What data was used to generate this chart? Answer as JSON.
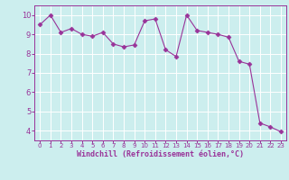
{
  "x": [
    0,
    1,
    2,
    3,
    4,
    5,
    6,
    7,
    8,
    9,
    10,
    11,
    12,
    13,
    14,
    15,
    16,
    17,
    18,
    19,
    20,
    21,
    22,
    23
  ],
  "y": [
    9.5,
    10.0,
    9.1,
    9.3,
    9.0,
    8.9,
    9.1,
    8.5,
    8.35,
    8.45,
    9.7,
    9.8,
    8.2,
    7.85,
    10.0,
    9.2,
    9.1,
    9.0,
    8.85,
    7.6,
    7.45,
    4.4,
    4.2,
    3.95
  ],
  "line_color": "#993399",
  "marker": "D",
  "marker_size": 2.5,
  "bg_color": "#cceeee",
  "grid_color": "#ffffff",
  "xlabel": "Windchill (Refroidissement éolien,°C)",
  "xlabel_color": "#993399",
  "tick_color": "#993399",
  "ylim": [
    3.5,
    10.5
  ],
  "xlim": [
    -0.5,
    23.5
  ],
  "yticks": [
    4,
    5,
    6,
    7,
    8,
    9,
    10
  ],
  "xticks": [
    0,
    1,
    2,
    3,
    4,
    5,
    6,
    7,
    8,
    9,
    10,
    11,
    12,
    13,
    14,
    15,
    16,
    17,
    18,
    19,
    20,
    21,
    22,
    23
  ],
  "x_fontsize": 5,
  "y_fontsize": 6,
  "xlabel_fontsize": 6
}
